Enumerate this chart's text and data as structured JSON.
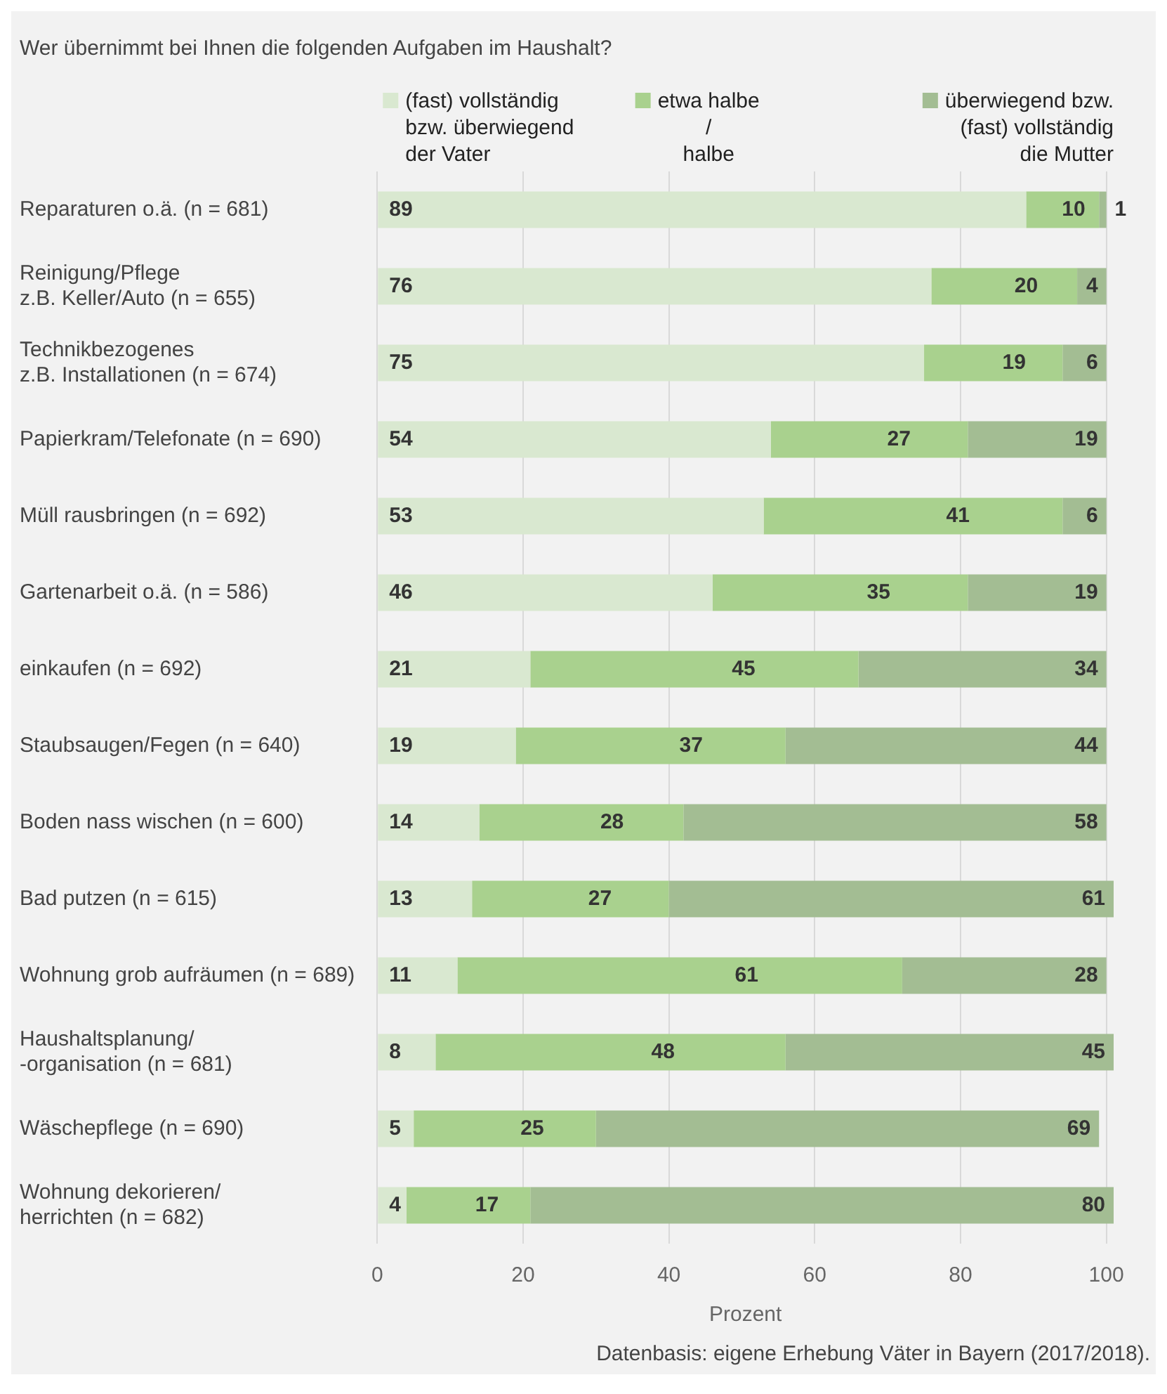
{
  "chart_data": {
    "type": "bar",
    "orientation": "horizontal",
    "stacked": true,
    "title": "Wer übernimmt bei Ihnen die folgenden Aufgaben im Haushalt?",
    "xlabel": "Prozent",
    "categories": [
      "Reparaturen o.ä. (n = 681)",
      "Reinigung/Pflege\nz.B. Keller/Auto (n = 655)",
      "Technikbezogenes\nz.B. Installationen (n = 674)",
      "Papierkram/Telefonate (n = 690)",
      "Müll rausbringen (n = 692)",
      "Gartenarbeit o.ä. (n = 586)",
      "einkaufen (n = 692)",
      "Staubsaugen/Fegen (n = 640)",
      "Boden nass wischen (n = 600)",
      "Bad putzen (n = 615)",
      "Wohnung grob aufräumen (n = 689)",
      "Haushaltsplanung/\n-organisation (n = 681)",
      "Wäschepflege (n = 690)",
      "Wohnung dekorieren/\nherrichten (n = 682)"
    ],
    "series": [
      {
        "name": "(fast) vollständig\nbzw. überwiegend\nder Vater",
        "color": "#d9e8d0",
        "values": [
          89,
          76,
          75,
          54,
          53,
          46,
          21,
          19,
          14,
          13,
          11,
          8,
          5,
          4
        ]
      },
      {
        "name": "etwa halbe\n/\nhalbe",
        "color": "#a9d18e",
        "values": [
          10,
          20,
          19,
          27,
          41,
          35,
          45,
          37,
          28,
          27,
          61,
          48,
          25,
          17
        ]
      },
      {
        "name": "überwiegend bzw.\n(fast) vollständig\ndie Mutter",
        "color": "#a3bd93",
        "values": [
          1,
          4,
          6,
          19,
          6,
          19,
          34,
          44,
          58,
          61,
          28,
          45,
          69,
          80
        ]
      }
    ],
    "xlim": [
      0,
      101
    ],
    "xticks": [
      0,
      20,
      40,
      60,
      80,
      100
    ],
    "grid": "x",
    "legend": "top",
    "data_labels": true,
    "annotations": [
      "Datenbasis: eigene Erhebung Väter in Bayern (2017/2018)."
    ]
  }
}
